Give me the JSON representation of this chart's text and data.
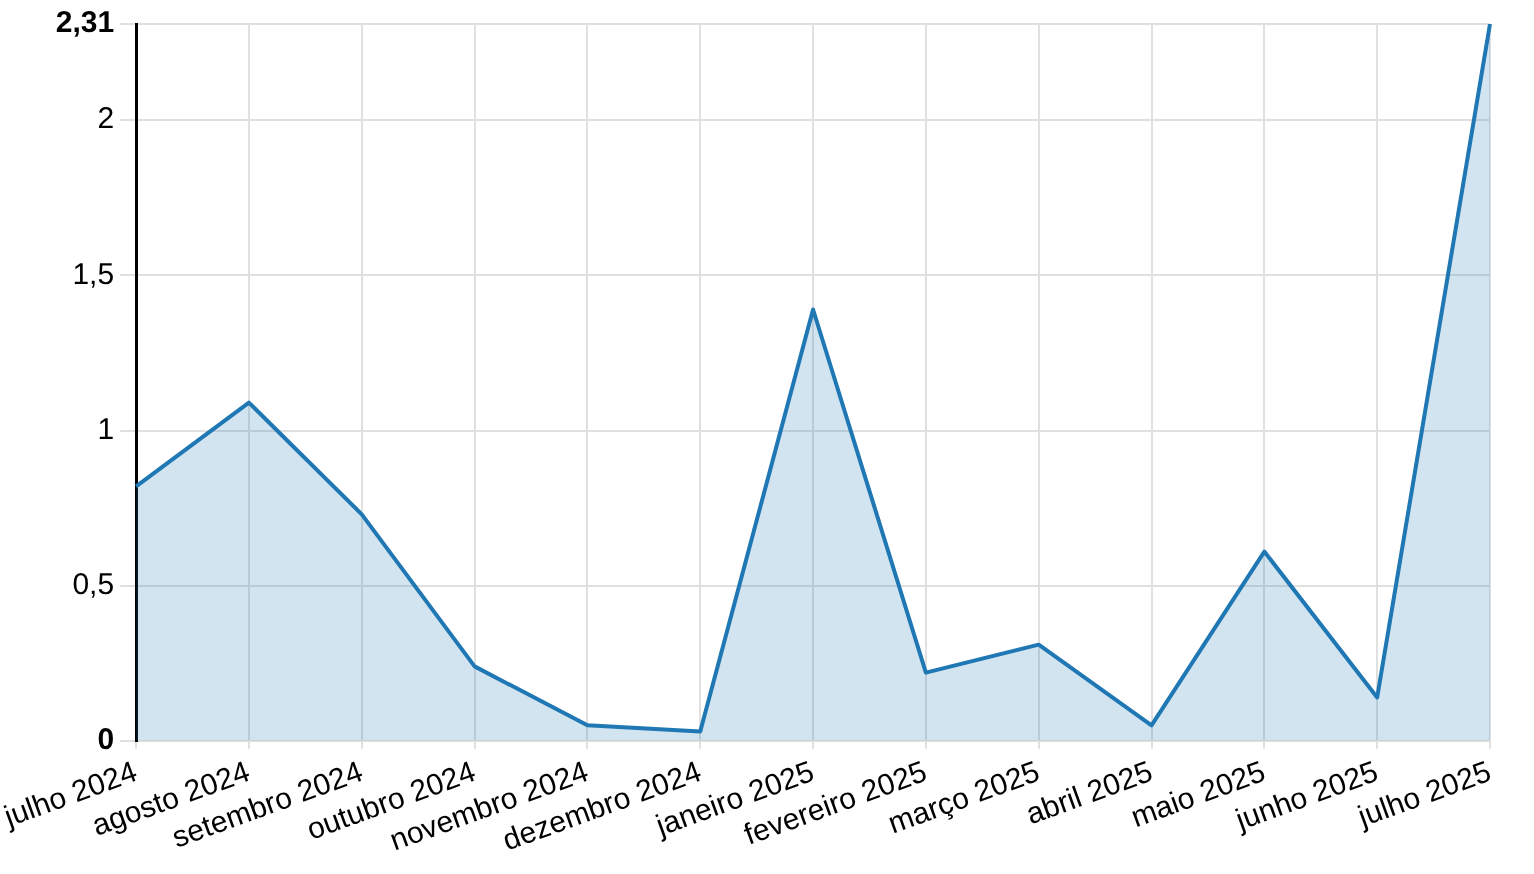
{
  "chart_data": {
    "type": "area",
    "categories": [
      "julho 2024",
      "agosto 2024",
      "setembro 2024",
      "outubro 2024",
      "novembro 2024",
      "dezembro 2024",
      "janeiro 2025",
      "fevereiro 2025",
      "março 2025",
      "abril 2025",
      "maio 2025",
      "junho 2025",
      "julho 2025"
    ],
    "series": [
      {
        "color": "#1f77b4",
        "values": [
          0.82,
          1.09,
          0.73,
          0.24,
          0.05,
          0.03,
          1.39,
          0.22,
          0.31,
          0.05,
          0.61,
          0.14,
          2.31
        ]
      }
    ],
    "ylim": [
      0,
      2.31
    ],
    "yticks": [
      {
        "value": 0,
        "label": "0"
      },
      {
        "value": 0.5,
        "label": "0,5"
      },
      {
        "value": 1,
        "label": "1"
      },
      {
        "value": 1.5,
        "label": "1,5"
      },
      {
        "value": 2,
        "label": "2"
      },
      {
        "value": 2.31,
        "label": "2,31"
      }
    ],
    "grid": true,
    "legend": false,
    "marker": "none"
  }
}
